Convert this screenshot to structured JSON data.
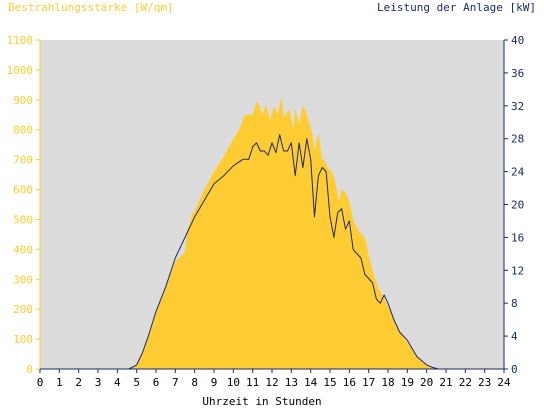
{
  "chart_data": {
    "type": "area",
    "left_axis_label": "Bestrahlungsstärke [W/qm]",
    "right_axis_label": "Leistung der Anlage [kW]",
    "xlabel": "Uhrzeit in Stunden",
    "xlim": [
      0,
      24
    ],
    "ylim": [
      0,
      1100
    ],
    "y2lim": [
      0,
      40
    ],
    "x_ticks": [
      "0",
      "1",
      "2",
      "3",
      "4",
      "5",
      "6",
      "7",
      "8",
      "9",
      "10",
      "11",
      "12",
      "13",
      "14",
      "15",
      "16",
      "17",
      "18",
      "19",
      "20",
      "21",
      "22",
      "23",
      "24"
    ],
    "y_ticks": [
      "0",
      "100",
      "200",
      "300",
      "400",
      "500",
      "600",
      "700",
      "800",
      "900",
      "1000",
      "1100"
    ],
    "y2_ticks": [
      "0",
      "4",
      "8",
      "12",
      "16",
      "20",
      "24",
      "28",
      "32",
      "36",
      "40"
    ],
    "grid": "none",
    "background": "#dcdcdc",
    "series": [
      {
        "axis": "left",
        "style": "filled-area",
        "color": "#ffcc33",
        "x": [
          0,
          4.6,
          5.0,
          5.3,
          5.6,
          6.0,
          6.5,
          7.0,
          7.5,
          7.6,
          7.9,
          8.0,
          8.5,
          9.0,
          9.5,
          10.0,
          10.3,
          10.6,
          10.7,
          11.0,
          11.2,
          11.35,
          11.5,
          11.7,
          11.9,
          12.1,
          12.3,
          12.5,
          12.6,
          12.7,
          12.9,
          13.1,
          13.2,
          13.4,
          13.6,
          13.7,
          13.9,
          14.1,
          14.2,
          14.4,
          14.6,
          14.7,
          14.9,
          15.1,
          15.3,
          15.45,
          15.6,
          15.8,
          16.0,
          16.2,
          16.5,
          16.8,
          17.0,
          17.2,
          17.5,
          17.7,
          18.0,
          18.3,
          18.6,
          19.0,
          19.5,
          20.0,
          20.3,
          20.6,
          24
        ],
        "values": [
          0,
          0,
          15,
          60,
          110,
          190,
          270,
          360,
          390,
          460,
          520,
          530,
          600,
          660,
          710,
          770,
          800,
          850,
          850,
          850,
          895,
          880,
          850,
          885,
          830,
          880,
          850,
          910,
          840,
          850,
          870,
          800,
          870,
          820,
          880,
          870,
          830,
          780,
          730,
          790,
          700,
          700,
          670,
          660,
          620,
          560,
          600,
          590,
          560,
          500,
          460,
          440,
          380,
          330,
          270,
          250,
          210,
          170,
          130,
          90,
          45,
          15,
          5,
          0,
          0
        ]
      },
      {
        "axis": "right",
        "style": "line",
        "color": "#1a2a6c",
        "x": [
          0,
          4.6,
          5.0,
          5.3,
          5.6,
          6.0,
          6.5,
          7.0,
          7.5,
          8.0,
          8.5,
          9.0,
          9.5,
          10.0,
          10.5,
          10.8,
          11.0,
          11.2,
          11.4,
          11.6,
          11.8,
          12.0,
          12.2,
          12.4,
          12.6,
          12.8,
          13.0,
          13.2,
          13.4,
          13.6,
          13.8,
          14.0,
          14.2,
          14.4,
          14.6,
          14.8,
          15.0,
          15.2,
          15.4,
          15.6,
          15.8,
          16.0,
          16.2,
          16.4,
          16.6,
          16.8,
          17.0,
          17.2,
          17.4,
          17.6,
          17.8,
          18.0,
          18.3,
          18.6,
          19.0,
          19.5,
          20.0,
          20.3,
          20.6,
          24
        ],
        "values": [
          0,
          0,
          0.5,
          2,
          4,
          7,
          10,
          13.5,
          16,
          18.5,
          20.5,
          22.5,
          23.5,
          24.7,
          25.5,
          25.5,
          27,
          27.5,
          26.5,
          26.5,
          26,
          27.5,
          26.3,
          28.5,
          26.5,
          26.5,
          27.5,
          23.5,
          27.5,
          24.5,
          28,
          25.5,
          18.5,
          23.5,
          24.5,
          24,
          18.5,
          16,
          19,
          19.5,
          17,
          18,
          14.5,
          14,
          13.5,
          11.5,
          11,
          10.5,
          8.5,
          8,
          9,
          8,
          6,
          4.5,
          3.5,
          1.5,
          0.5,
          0.2,
          0,
          0
        ]
      }
    ]
  }
}
